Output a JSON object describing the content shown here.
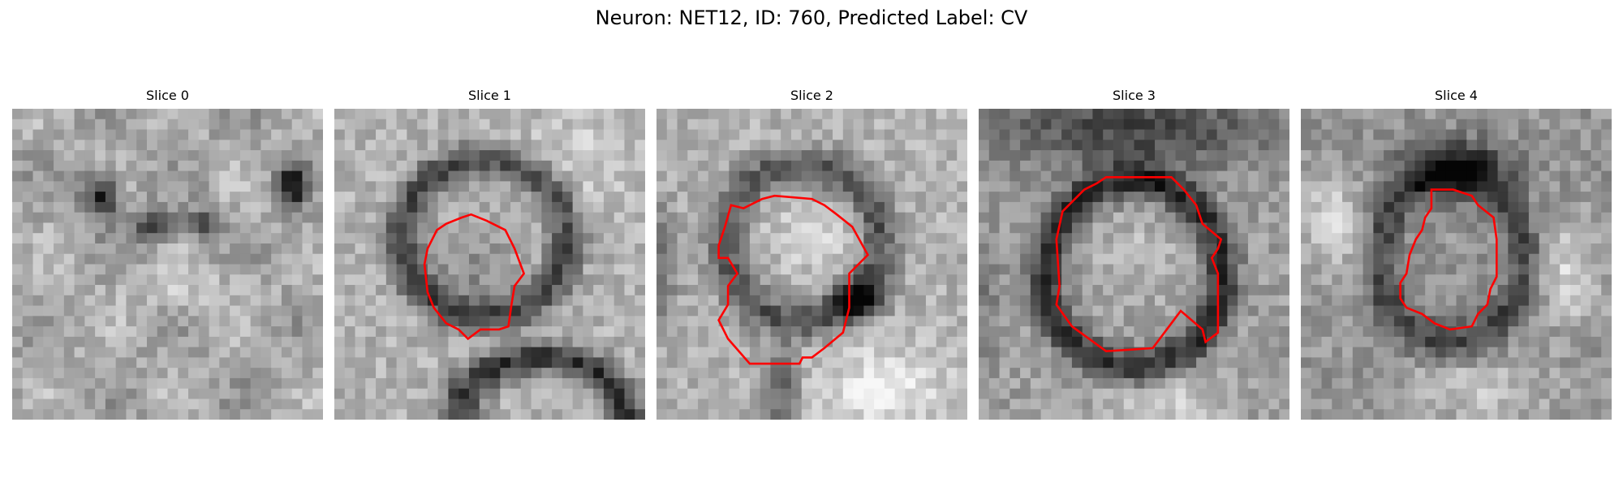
{
  "title": "Neuron: NET12, ID: 760, Predicted Label: CV",
  "overlay_color": "#ff0000",
  "panels": [
    {
      "title": "Slice 0",
      "seed": 11,
      "pattern": "slice0",
      "has_contour": false
    },
    {
      "title": "Slice 1",
      "seed": 23,
      "pattern": "slice1",
      "has_contour": true
    },
    {
      "title": "Slice 2",
      "seed": 37,
      "pattern": "slice2",
      "has_contour": true
    },
    {
      "title": "Slice 3",
      "seed": 53,
      "pattern": "slice3",
      "has_contour": true
    },
    {
      "title": "Slice 4",
      "seed": 71,
      "pattern": "slice4",
      "has_contour": true
    }
  ]
}
